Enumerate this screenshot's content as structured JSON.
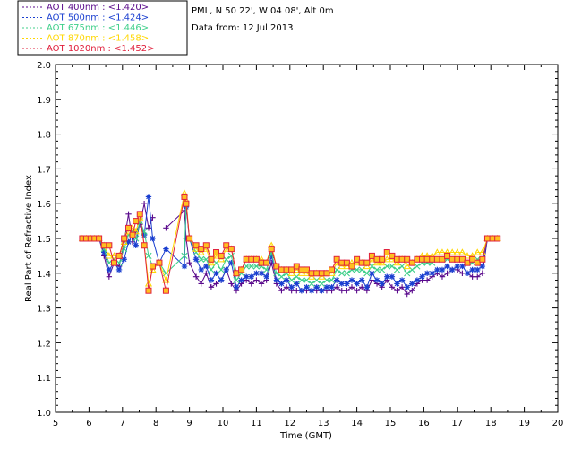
{
  "header": {
    "site_line": "PML, N 50 22', W 04 08', Alt 0m",
    "date_line": "Data from: 12 Jul 2013"
  },
  "chart_data": {
    "type": "scatter",
    "xlabel": "Time (GMT)",
    "ylabel": "Real Part of Refractive Index",
    "xlim": [
      5,
      20
    ],
    "ylim": [
      1.0,
      2.0
    ],
    "x_ticks": [
      "5",
      "6",
      "7",
      "8",
      "9",
      "10",
      "11",
      "12",
      "13",
      "14",
      "15",
      "16",
      "17",
      "18",
      "19",
      "20"
    ],
    "y_ticks": [
      "1.0",
      "1.1",
      "1.2",
      "1.3",
      "1.4",
      "1.5",
      "1.6",
      "1.7",
      "1.8",
      "1.9",
      "2.0"
    ],
    "grid": false,
    "legend_position": "top-left, outside plot",
    "series": [
      {
        "name": "AOT  400nm : <1.420>",
        "color": "#5a0a8c",
        "marker": "plus",
        "x": [
          5.8,
          5.92,
          6.05,
          6.17,
          6.3,
          6.45,
          6.6,
          6.75,
          6.9,
          7.05,
          7.18,
          7.3,
          7.4,
          7.52,
          7.65,
          7.78,
          7.9,
          8.1,
          8.3,
          8.85,
          8.9,
          9.0,
          9.2,
          9.35,
          9.5,
          9.65,
          9.8,
          9.95,
          10.1,
          10.25,
          10.4,
          10.55,
          10.7,
          10.85,
          11.0,
          11.15,
          11.3,
          11.45,
          11.6,
          11.75,
          11.9,
          12.05,
          12.2,
          12.35,
          12.5,
          12.65,
          12.8,
          12.95,
          13.1,
          13.25,
          13.4,
          13.55,
          13.7,
          13.85,
          14.0,
          14.15,
          14.3,
          14.45,
          14.6,
          14.75,
          14.9,
          15.05,
          15.2,
          15.35,
          15.5,
          15.65,
          15.8,
          15.95,
          16.1,
          16.25,
          16.4,
          16.55,
          16.7,
          16.85,
          17.0,
          17.15,
          17.3,
          17.45,
          17.6,
          17.75,
          17.9,
          18.05,
          18.2
        ],
        "y": [
          1.5,
          1.5,
          1.5,
          1.5,
          1.5,
          1.45,
          1.39,
          1.43,
          1.42,
          1.49,
          1.57,
          1.49,
          1.52,
          1.54,
          1.6,
          1.53,
          1.56,
          null,
          1.53,
          1.58,
          1.5,
          1.43,
          1.39,
          1.37,
          1.4,
          1.36,
          1.37,
          1.38,
          1.41,
          1.37,
          1.35,
          1.37,
          1.38,
          1.37,
          1.38,
          1.37,
          1.38,
          1.43,
          1.37,
          1.35,
          1.36,
          1.35,
          1.35,
          1.35,
          1.35,
          1.35,
          1.35,
          1.35,
          1.35,
          1.35,
          1.36,
          1.35,
          1.35,
          1.36,
          1.35,
          1.36,
          1.35,
          1.38,
          1.37,
          1.36,
          1.38,
          1.36,
          1.35,
          1.36,
          1.34,
          1.35,
          1.37,
          1.38,
          1.38,
          1.39,
          1.4,
          1.39,
          1.4,
          1.41,
          1.41,
          1.4,
          1.4,
          1.39,
          1.39,
          1.4,
          1.5,
          1.5,
          1.5
        ]
      },
      {
        "name": "AOT  500nm : <1.424>",
        "color": "#1a3fd0",
        "marker": "star",
        "x": [
          5.8,
          5.92,
          6.05,
          6.17,
          6.3,
          6.45,
          6.6,
          6.75,
          6.9,
          7.05,
          7.18,
          7.3,
          7.4,
          7.52,
          7.65,
          7.78,
          7.9,
          8.1,
          8.3,
          8.85,
          8.9,
          9.0,
          9.2,
          9.35,
          9.5,
          9.65,
          9.8,
          9.95,
          10.1,
          10.25,
          10.4,
          10.55,
          10.7,
          10.85,
          11.0,
          11.15,
          11.3,
          11.45,
          11.6,
          11.75,
          11.9,
          12.05,
          12.2,
          12.35,
          12.5,
          12.65,
          12.8,
          12.95,
          13.1,
          13.25,
          13.4,
          13.55,
          13.7,
          13.85,
          14.0,
          14.15,
          14.3,
          14.45,
          14.6,
          14.75,
          14.9,
          15.05,
          15.2,
          15.35,
          15.5,
          15.65,
          15.8,
          15.95,
          16.1,
          16.25,
          16.4,
          16.55,
          16.7,
          16.85,
          17.0,
          17.15,
          17.3,
          17.45,
          17.6,
          17.75,
          17.9,
          18.05,
          18.2
        ],
        "y": [
          1.5,
          1.5,
          1.5,
          1.5,
          1.5,
          1.46,
          1.41,
          1.43,
          1.41,
          1.44,
          1.49,
          1.51,
          1.48,
          1.55,
          1.51,
          1.62,
          1.5,
          1.43,
          1.47,
          1.42,
          1.59,
          1.5,
          1.44,
          1.41,
          1.42,
          1.38,
          1.4,
          1.38,
          1.41,
          1.43,
          1.36,
          1.38,
          1.39,
          1.39,
          1.4,
          1.4,
          1.39,
          1.45,
          1.38,
          1.37,
          1.38,
          1.36,
          1.37,
          1.35,
          1.36,
          1.35,
          1.36,
          1.35,
          1.36,
          1.36,
          1.38,
          1.37,
          1.37,
          1.38,
          1.37,
          1.38,
          1.36,
          1.4,
          1.38,
          1.37,
          1.39,
          1.39,
          1.37,
          1.38,
          1.36,
          1.37,
          1.38,
          1.39,
          1.4,
          1.4,
          1.41,
          1.41,
          1.42,
          1.41,
          1.42,
          1.42,
          1.4,
          1.41,
          1.41,
          1.42,
          1.5,
          1.5,
          1.5
        ]
      },
      {
        "name": "AOT  675nm : <1.446>",
        "color": "#3fcf8a",
        "marker": "x",
        "x": [
          5.8,
          5.92,
          6.05,
          6.17,
          6.3,
          6.45,
          6.6,
          6.75,
          6.9,
          7.05,
          7.18,
          7.3,
          7.4,
          7.52,
          7.65,
          7.78,
          7.9,
          8.1,
          8.3,
          8.85,
          8.9,
          9.0,
          9.2,
          9.35,
          9.5,
          9.65,
          9.8,
          9.95,
          10.1,
          10.25,
          10.4,
          10.55,
          10.7,
          10.85,
          11.0,
          11.15,
          11.3,
          11.45,
          11.6,
          11.75,
          11.9,
          12.05,
          12.2,
          12.35,
          12.5,
          12.65,
          12.8,
          12.95,
          13.1,
          13.25,
          13.4,
          13.55,
          13.7,
          13.85,
          14.0,
          14.15,
          14.3,
          14.45,
          14.6,
          14.75,
          14.9,
          15.05,
          15.2,
          15.35,
          15.5,
          15.65,
          15.8,
          15.95,
          16.1,
          16.25,
          16.4,
          16.55,
          16.7,
          16.85,
          17.0,
          17.15,
          17.3,
          17.45,
          17.6,
          17.75,
          17.9,
          18.05,
          18.2
        ],
        "y": [
          1.5,
          1.5,
          1.5,
          1.5,
          1.5,
          1.47,
          1.43,
          1.44,
          1.43,
          1.47,
          1.51,
          1.52,
          1.5,
          1.55,
          1.52,
          1.45,
          1.42,
          1.43,
          1.4,
          1.45,
          1.6,
          1.5,
          1.46,
          1.44,
          1.44,
          1.41,
          1.43,
          1.41,
          1.44,
          1.45,
          1.38,
          1.4,
          1.42,
          1.42,
          1.42,
          1.42,
          1.41,
          1.46,
          1.4,
          1.39,
          1.4,
          1.38,
          1.39,
          1.38,
          1.38,
          1.37,
          1.38,
          1.37,
          1.38,
          1.38,
          1.41,
          1.4,
          1.4,
          1.41,
          1.41,
          1.41,
          1.4,
          1.42,
          1.41,
          1.41,
          1.42,
          1.42,
          1.41,
          1.42,
          1.4,
          1.41,
          1.42,
          1.43,
          1.43,
          1.43,
          1.44,
          1.44,
          1.44,
          1.44,
          1.44,
          1.44,
          1.43,
          1.43,
          1.44,
          1.44,
          1.5,
          1.5,
          1.5
        ]
      },
      {
        "name": "AOT  870nm : <1.458>",
        "color": "#ffd700",
        "marker": "triangle",
        "x": [
          5.8,
          5.92,
          6.05,
          6.17,
          6.3,
          6.45,
          6.6,
          6.75,
          6.9,
          7.05,
          7.18,
          7.3,
          7.4,
          7.52,
          7.65,
          7.78,
          7.9,
          8.1,
          8.3,
          8.85,
          8.9,
          9.0,
          9.2,
          9.35,
          9.5,
          9.65,
          9.8,
          9.95,
          10.1,
          10.25,
          10.4,
          10.55,
          10.7,
          10.85,
          11.0,
          11.15,
          11.3,
          11.45,
          11.6,
          11.75,
          11.9,
          12.05,
          12.2,
          12.35,
          12.5,
          12.65,
          12.8,
          12.95,
          13.1,
          13.25,
          13.4,
          13.55,
          13.7,
          13.85,
          14.0,
          14.15,
          14.3,
          14.45,
          14.6,
          14.75,
          14.9,
          15.05,
          15.2,
          15.35,
          15.5,
          15.65,
          15.8,
          15.95,
          16.1,
          16.25,
          16.4,
          16.55,
          16.7,
          16.85,
          17.0,
          17.15,
          17.3,
          17.45,
          17.6,
          17.75,
          17.9,
          18.05,
          18.2
        ],
        "y": [
          1.5,
          1.5,
          1.5,
          1.5,
          1.5,
          1.48,
          1.45,
          1.45,
          1.45,
          1.49,
          1.52,
          1.53,
          1.52,
          1.56,
          1.48,
          1.37,
          1.41,
          1.43,
          1.38,
          1.63,
          1.61,
          1.5,
          1.47,
          1.46,
          1.47,
          1.43,
          1.45,
          1.44,
          1.47,
          1.47,
          1.4,
          1.41,
          1.44,
          1.44,
          1.44,
          1.44,
          1.43,
          1.48,
          1.42,
          1.41,
          1.41,
          1.4,
          1.41,
          1.4,
          1.4,
          1.39,
          1.4,
          1.39,
          1.4,
          1.4,
          1.43,
          1.42,
          1.42,
          1.43,
          1.43,
          1.43,
          1.42,
          1.44,
          1.43,
          1.43,
          1.44,
          1.44,
          1.43,
          1.44,
          1.42,
          1.43,
          1.44,
          1.45,
          1.45,
          1.45,
          1.46,
          1.46,
          1.46,
          1.46,
          1.46,
          1.46,
          1.45,
          1.45,
          1.46,
          1.46,
          1.5,
          1.5,
          1.5
        ]
      },
      {
        "name": "AOT 1020nm : <1.452>",
        "color": "#e0203c",
        "marker": "square",
        "x": [
          5.8,
          5.92,
          6.05,
          6.17,
          6.3,
          6.45,
          6.6,
          6.75,
          6.9,
          7.05,
          7.18,
          7.3,
          7.4,
          7.52,
          7.65,
          7.78,
          7.9,
          8.1,
          8.3,
          8.85,
          8.9,
          9.0,
          9.2,
          9.35,
          9.5,
          9.65,
          9.8,
          9.95,
          10.1,
          10.25,
          10.4,
          10.55,
          10.7,
          10.85,
          11.0,
          11.15,
          11.3,
          11.45,
          11.6,
          11.75,
          11.9,
          12.05,
          12.2,
          12.35,
          12.5,
          12.65,
          12.8,
          12.95,
          13.1,
          13.25,
          13.4,
          13.55,
          13.7,
          13.85,
          14.0,
          14.15,
          14.3,
          14.45,
          14.6,
          14.75,
          14.9,
          15.05,
          15.2,
          15.35,
          15.5,
          15.65,
          15.8,
          15.95,
          16.1,
          16.25,
          16.4,
          16.55,
          16.7,
          16.85,
          17.0,
          17.15,
          17.3,
          17.45,
          17.6,
          17.75,
          17.9,
          18.05,
          18.2
        ],
        "y": [
          1.5,
          1.5,
          1.5,
          1.5,
          1.5,
          1.48,
          1.48,
          1.43,
          1.45,
          1.5,
          1.53,
          1.51,
          1.55,
          1.57,
          1.48,
          1.35,
          1.42,
          1.43,
          1.35,
          1.62,
          1.6,
          1.5,
          1.48,
          1.47,
          1.48,
          1.44,
          1.46,
          1.45,
          1.48,
          1.47,
          1.4,
          1.41,
          1.44,
          1.44,
          1.44,
          1.43,
          1.43,
          1.47,
          1.42,
          1.41,
          1.41,
          1.41,
          1.42,
          1.41,
          1.41,
          1.4,
          1.4,
          1.4,
          1.4,
          1.41,
          1.44,
          1.43,
          1.43,
          1.42,
          1.44,
          1.43,
          1.43,
          1.45,
          1.44,
          1.44,
          1.46,
          1.45,
          1.44,
          1.44,
          1.44,
          1.43,
          1.44,
          1.44,
          1.44,
          1.44,
          1.44,
          1.44,
          1.45,
          1.44,
          1.44,
          1.44,
          1.43,
          1.44,
          1.43,
          1.44,
          1.5,
          1.5,
          1.5
        ]
      }
    ]
  }
}
